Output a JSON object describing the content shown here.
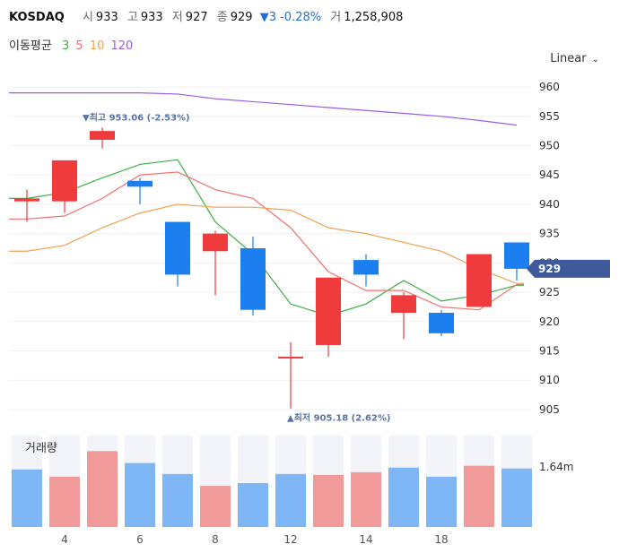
{
  "header": {
    "symbol": "KOSDAQ",
    "open_label": "시",
    "open": "933",
    "high_label": "고",
    "high": "933",
    "low_label": "저",
    "low": "927",
    "close_label": "종",
    "close": "929",
    "change": "▼3 -0.28%",
    "volume_label": "거",
    "volume": "1,258,908"
  },
  "ma_legend": {
    "label": "이동평균",
    "periods": [
      "3",
      "5",
      "10",
      "120"
    ],
    "colors": [
      "#3cb043",
      "#ef6f6c",
      "#f0a050",
      "#9b5de5"
    ]
  },
  "scale_button": {
    "label": "Linear",
    "icon": "chevron-down-icon"
  },
  "annotations": {
    "high": "▼최고 953.06 (-2.53%)",
    "low": "▲최저 905.18 (2.62%)"
  },
  "current_price_tag": "929",
  "volume_panel": {
    "title": "거래량",
    "axis_label": "1.64m"
  },
  "colors": {
    "up": "#ef3b3b",
    "down": "#1b7ff0",
    "vol_up": "#f19a9a",
    "vol_down": "#7fb6f5"
  },
  "chart_data": {
    "type": "candlestick",
    "x_ticks": [
      "4",
      "6",
      "8",
      "12",
      "14",
      "18"
    ],
    "x_tick_index": [
      1,
      3,
      5,
      7,
      9,
      11
    ],
    "y_ticks": [
      960,
      955,
      950,
      945,
      940,
      935,
      930,
      925,
      920,
      915,
      910,
      905
    ],
    "ylim": [
      903,
      962
    ],
    "candles": [
      {
        "o": 940.5,
        "h": 942.5,
        "l": 937,
        "c": 941
      },
      {
        "o": 940.5,
        "h": 947.5,
        "l": 938.5,
        "c": 947.5
      },
      {
        "o": 951,
        "h": 953.06,
        "l": 949.5,
        "c": 952.5
      },
      {
        "o": 944,
        "h": 944.5,
        "l": 940,
        "c": 943
      },
      {
        "o": 937,
        "h": 937,
        "l": 926,
        "c": 928
      },
      {
        "o": 932,
        "h": 935.5,
        "l": 924.5,
        "c": 935
      },
      {
        "o": 932.5,
        "h": 934.5,
        "l": 921,
        "c": 922
      },
      {
        "o": 914,
        "h": 916.5,
        "l": 905.18,
        "c": 914
      },
      {
        "o": 916,
        "h": 927.5,
        "l": 914,
        "c": 927.5
      },
      {
        "o": 930.5,
        "h": 931.5,
        "l": 926,
        "c": 928
      },
      {
        "o": 921.5,
        "h": 925,
        "l": 917,
        "c": 924.5
      },
      {
        "o": 921.5,
        "h": 922,
        "l": 917.5,
        "c": 918
      },
      {
        "o": 922.5,
        "h": 931.5,
        "l": 922.5,
        "c": 931.5
      },
      {
        "o": 933.5,
        "h": 933.5,
        "l": 927,
        "c": 929
      }
    ],
    "ma": [
      {
        "period": 3,
        "values": [
          941,
          942,
          944.5,
          946.8,
          947.6,
          937,
          931.5,
          923,
          921,
          923,
          927,
          923.5,
          924.5,
          926.2
        ]
      },
      {
        "period": 5,
        "values": [
          937.5,
          938,
          941,
          945,
          945.5,
          942.5,
          941,
          936,
          928.5,
          925.3,
          925.3,
          922.5,
          922,
          926.3
        ]
      },
      {
        "period": 10,
        "values": [
          932,
          933,
          936,
          938.5,
          940,
          939.5,
          939.5,
          939,
          936,
          935,
          933.5,
          932,
          929,
          926.5
        ]
      },
      {
        "period": 120,
        "values": [
          959,
          959,
          959,
          959,
          958.8,
          958,
          957.5,
          957,
          956.5,
          956,
          955.5,
          955,
          954.3,
          953.5
        ]
      }
    ],
    "volume": [
      {
        "v": 0.63,
        "up": false
      },
      {
        "v": 0.55,
        "up": true
      },
      {
        "v": 0.83,
        "up": true
      },
      {
        "v": 0.7,
        "up": false
      },
      {
        "v": 0.58,
        "up": false
      },
      {
        "v": 0.45,
        "up": true
      },
      {
        "v": 0.48,
        "up": false
      },
      {
        "v": 0.58,
        "up": false
      },
      {
        "v": 0.57,
        "up": true
      },
      {
        "v": 0.6,
        "up": true
      },
      {
        "v": 0.65,
        "up": false
      },
      {
        "v": 0.55,
        "up": false
      },
      {
        "v": 0.67,
        "up": true
      },
      {
        "v": 0.64,
        "up": false
      }
    ]
  }
}
